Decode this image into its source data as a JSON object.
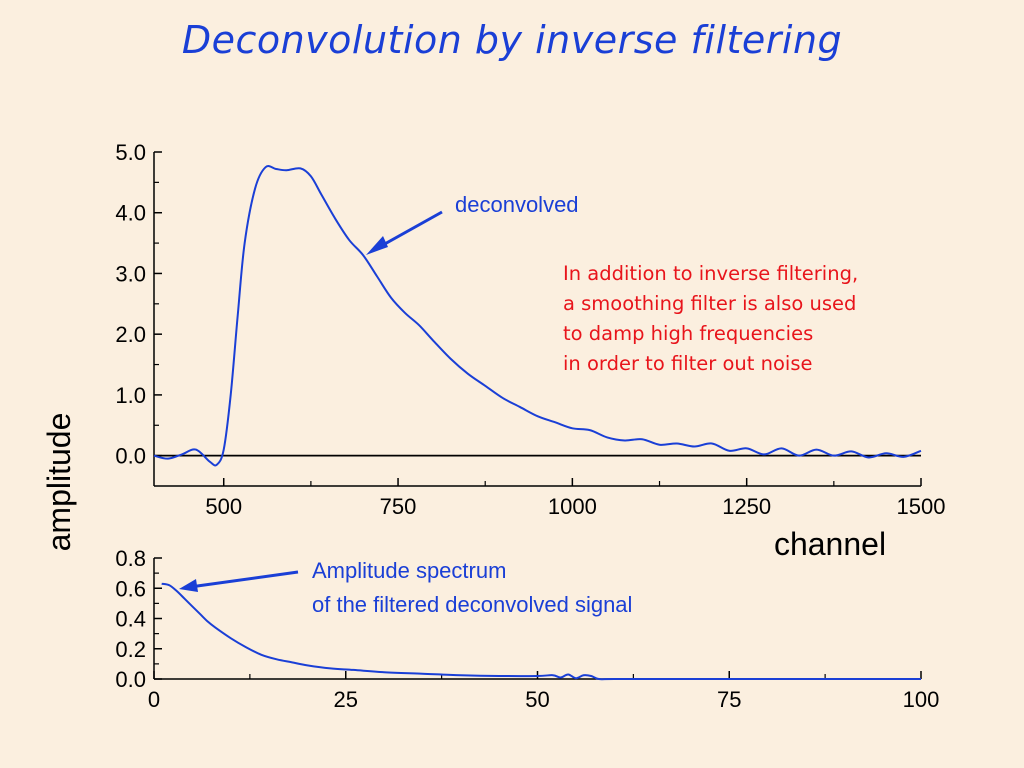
{
  "title": "Deconvolution by inverse filtering",
  "colors": {
    "background": "#fbefdf",
    "title": "#1a3fd6",
    "series": "#1a3fd6",
    "note": "#e8141b",
    "axis": "#000000"
  },
  "chart_data": [
    {
      "type": "line",
      "xlabel": "channel",
      "ylabel": "amplitude",
      "xlim": [
        400,
        1500
      ],
      "ylim": [
        -0.5,
        5.0
      ],
      "x_ticks": [
        "500",
        "750",
        "1000",
        "1250",
        "1500"
      ],
      "y_ticks": [
        "0.0",
        "1.0",
        "2.0",
        "3.0",
        "4.0",
        "5.0"
      ],
      "zero_line": true,
      "series": [
        {
          "name": "deconvolved",
          "x": [
            400,
            420,
            440,
            460,
            480,
            490,
            500,
            510,
            520,
            530,
            545,
            560,
            575,
            590,
            610,
            625,
            640,
            660,
            680,
            700,
            720,
            740,
            760,
            780,
            800,
            825,
            850,
            875,
            900,
            925,
            950,
            975,
            1000,
            1025,
            1050,
            1075,
            1100,
            1125,
            1150,
            1175,
            1200,
            1225,
            1250,
            1275,
            1300,
            1325,
            1350,
            1375,
            1400,
            1425,
            1450,
            1475,
            1500
          ],
          "y": [
            0.0,
            -0.05,
            0.02,
            0.1,
            -0.1,
            -0.15,
            0.1,
            1.0,
            2.3,
            3.5,
            4.4,
            4.75,
            4.72,
            4.7,
            4.73,
            4.6,
            4.3,
            3.9,
            3.55,
            3.3,
            2.95,
            2.6,
            2.35,
            2.15,
            1.9,
            1.6,
            1.35,
            1.15,
            0.95,
            0.8,
            0.65,
            0.55,
            0.45,
            0.42,
            0.3,
            0.25,
            0.27,
            0.18,
            0.2,
            0.15,
            0.2,
            0.08,
            0.12,
            0.02,
            0.12,
            0.0,
            0.1,
            0.0,
            0.07,
            -0.03,
            0.04,
            -0.02,
            0.08
          ]
        }
      ],
      "annotations": [
        {
          "text": "deconvolved"
        },
        {
          "lines": [
            "In addition to inverse filtering,",
            "a smoothing filter is also used",
            "to damp high frequencies",
            "in order to filter out noise"
          ]
        }
      ]
    },
    {
      "type": "line",
      "xlim": [
        0,
        100
      ],
      "ylim": [
        0,
        0.8
      ],
      "x_ticks": [
        "0",
        "25",
        "50",
        "75",
        "100"
      ],
      "y_ticks": [
        "0.0",
        "0.2",
        "0.4",
        "0.6",
        "0.8"
      ],
      "series": [
        {
          "name": "Amplitude spectrum of the filtered deconvolved signal",
          "x": [
            1,
            2,
            3,
            4,
            5,
            6,
            7,
            8,
            10,
            12,
            14,
            16,
            18,
            20,
            23,
            26,
            30,
            35,
            40,
            45,
            50,
            52,
            53,
            54,
            55,
            56,
            57,
            58,
            60,
            70,
            80,
            90,
            100
          ],
          "y": [
            0.63,
            0.62,
            0.58,
            0.53,
            0.48,
            0.43,
            0.38,
            0.34,
            0.27,
            0.21,
            0.16,
            0.13,
            0.11,
            0.09,
            0.07,
            0.06,
            0.045,
            0.035,
            0.025,
            0.02,
            0.02,
            0.025,
            0.01,
            0.03,
            0.005,
            0.025,
            0.02,
            0.0,
            0.0,
            0.0,
            0.0,
            0.0,
            0.0
          ]
        }
      ],
      "annotations": [
        {
          "lines": [
            "Amplitude spectrum",
            "of the filtered deconvolved signal"
          ]
        }
      ]
    }
  ]
}
